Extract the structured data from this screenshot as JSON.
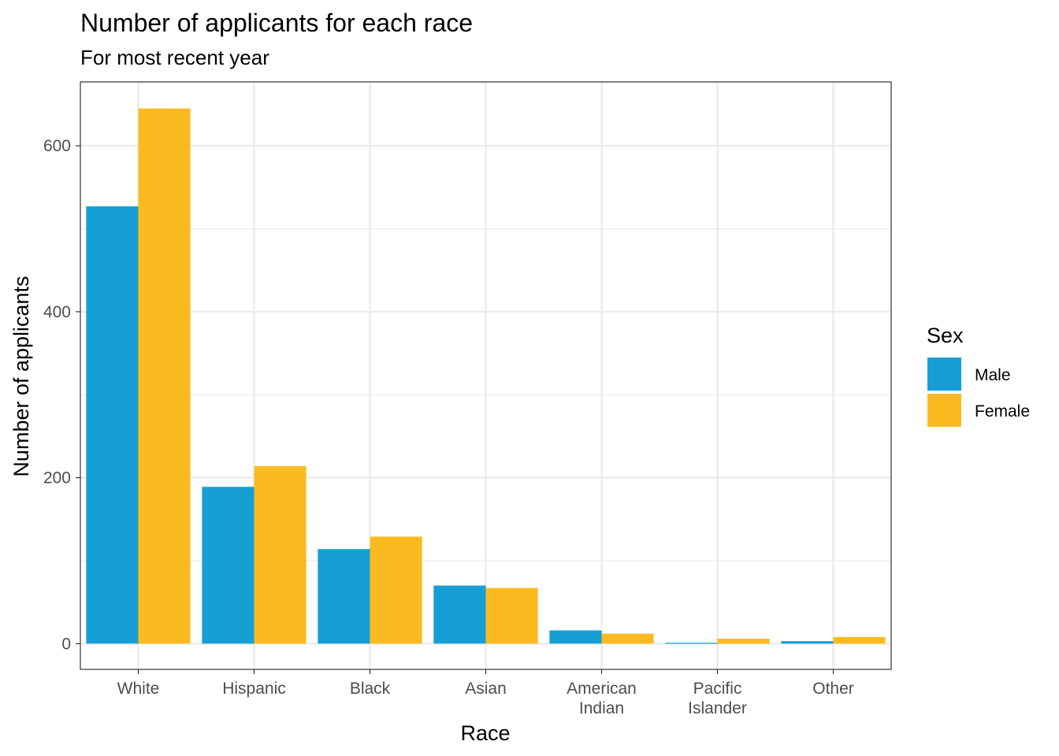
{
  "chart_data": {
    "type": "bar",
    "title": "Number of applicants for each race",
    "subtitle": "For most recent year",
    "xlabel": "Race",
    "ylabel": "Number of applicants",
    "categories": [
      [
        "White"
      ],
      [
        "Hispanic"
      ],
      [
        "Black"
      ],
      [
        "Asian"
      ],
      [
        "American",
        "Indian"
      ],
      [
        "Pacific",
        "Islander"
      ],
      [
        "Other"
      ]
    ],
    "series": [
      {
        "name": "Male",
        "color": "#169fd4",
        "values": [
          527,
          189,
          114,
          70,
          16,
          1,
          3
        ]
      },
      {
        "name": "Female",
        "color": "#fcba21",
        "values": [
          645,
          214,
          129,
          67,
          12,
          6,
          8
        ]
      }
    ],
    "ylim": [
      -31,
      677
    ],
    "yticks": [
      0,
      200,
      400,
      600
    ],
    "grid": true,
    "legend": {
      "title": "Sex",
      "position": "right"
    }
  }
}
